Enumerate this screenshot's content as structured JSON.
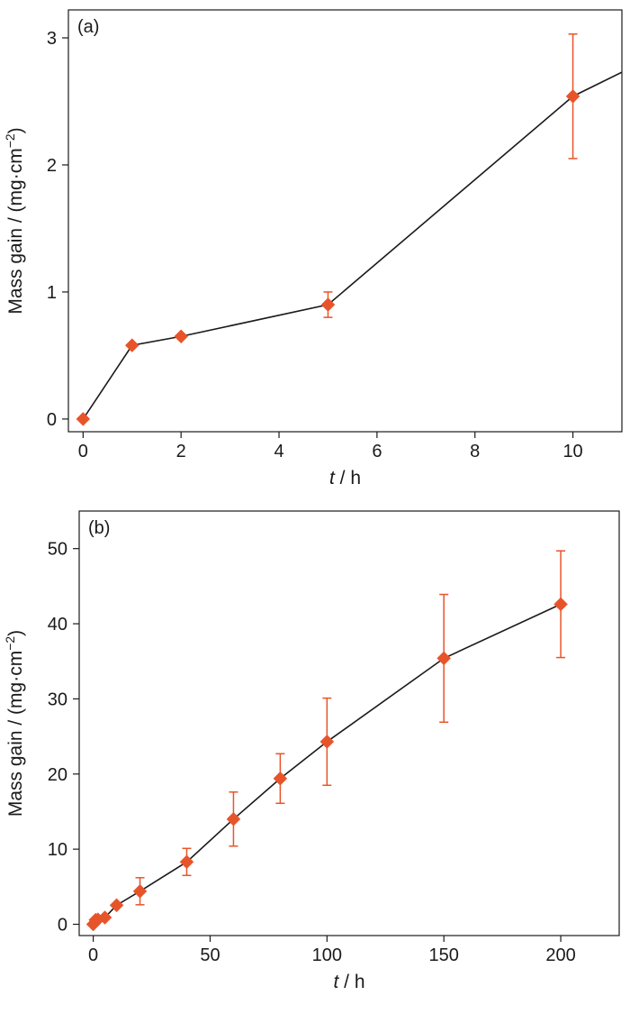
{
  "colors": {
    "marker": "#e8542a",
    "errorbar": "#e8542a",
    "line": "#1a1a1a",
    "axis": "#1a1a1a"
  },
  "chart_data": [
    {
      "type": "line",
      "panel_label": "(a)",
      "xlabel_italic": "t",
      "xlabel_rest": " / h",
      "ylabel": "Mass gain / (mg·cm",
      "ylabel_sup": "−2",
      "ylabel_close": ")",
      "xlim": [
        -0.3,
        11
      ],
      "ylim": [
        -0.1,
        3.22
      ],
      "xticks": [
        0,
        2,
        4,
        6,
        8,
        10
      ],
      "yticks": [
        0,
        1,
        2,
        3
      ],
      "points": [
        {
          "x": 0,
          "y": 0.0,
          "err": 0
        },
        {
          "x": 1,
          "y": 0.58,
          "err": 0
        },
        {
          "x": 2,
          "y": 0.65,
          "err": 0
        },
        {
          "x": 5,
          "y": 0.9,
          "err": 0.1
        },
        {
          "x": 10,
          "y": 2.54,
          "err": 0.49
        }
      ],
      "line_extends_to": {
        "x": 11,
        "y": 2.73
      }
    },
    {
      "type": "line",
      "panel_label": "(b)",
      "xlabel_italic": "t",
      "xlabel_rest": " / h",
      "ylabel": "Mass gain / (mg·cm",
      "ylabel_sup": "−2",
      "ylabel_close": ")",
      "xlim": [
        -6,
        225
      ],
      "ylim": [
        -1.5,
        55
      ],
      "xticks": [
        0,
        50,
        100,
        150,
        200
      ],
      "yticks": [
        0,
        10,
        20,
        30,
        40,
        50
      ],
      "points": [
        {
          "x": 0,
          "y": 0.0,
          "err": 0
        },
        {
          "x": 1,
          "y": 0.58,
          "err": 0
        },
        {
          "x": 2,
          "y": 0.65,
          "err": 0
        },
        {
          "x": 5,
          "y": 0.9,
          "err": 0
        },
        {
          "x": 10,
          "y": 2.54,
          "err": 0
        },
        {
          "x": 20,
          "y": 4.4,
          "err": 1.8
        },
        {
          "x": 40,
          "y": 8.3,
          "err": 1.8
        },
        {
          "x": 60,
          "y": 14.0,
          "err": 3.6
        },
        {
          "x": 80,
          "y": 19.4,
          "err": 3.3
        },
        {
          "x": 100,
          "y": 24.3,
          "err": 5.8
        },
        {
          "x": 150,
          "y": 35.4,
          "err": 8.5
        },
        {
          "x": 200,
          "y": 42.6,
          "err": 7.1
        }
      ]
    }
  ]
}
